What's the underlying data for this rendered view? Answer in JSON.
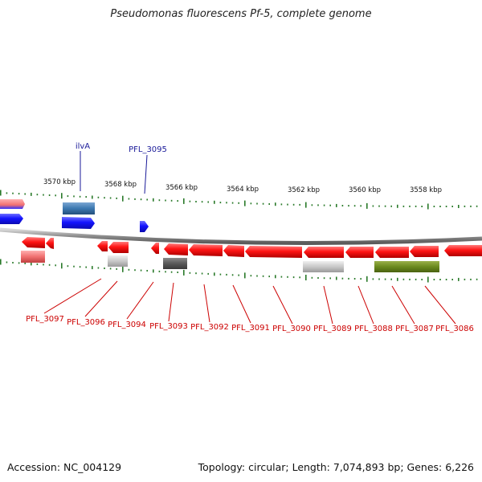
{
  "title": "Pseudomonas fluorescens Pf-5, complete genome",
  "footer": {
    "accession": "Accession: NC_004129",
    "summary": "Topology: circular; Length: 7,074,893 bp; Genes: 6,226"
  },
  "colors": {
    "forward_gene": "#1a1aff",
    "reverse_gene": "#ff1a1a",
    "label_forward": "#1a1a99",
    "label_reverse": "#cc0000",
    "tick": "#2a7a2a",
    "backbone": "#8a8a8a"
  },
  "scale_labels": [
    "3570 kbp",
    "3568 kbp",
    "3566 kbp",
    "3564 kbp",
    "3562 kbp",
    "3560 kbp",
    "3558 kbp"
  ],
  "top_labels": [
    "ilvA",
    "PFL_3095"
  ],
  "bottom_labels": [
    "PFL_3097",
    "PFL_3096",
    "PFL_3094",
    "PFL_3093",
    "PFL_3092",
    "PFL_3091",
    "PFL_3090",
    "PFL_3089",
    "PFL_3088",
    "PFL_3087",
    "PFL_3086"
  ]
}
